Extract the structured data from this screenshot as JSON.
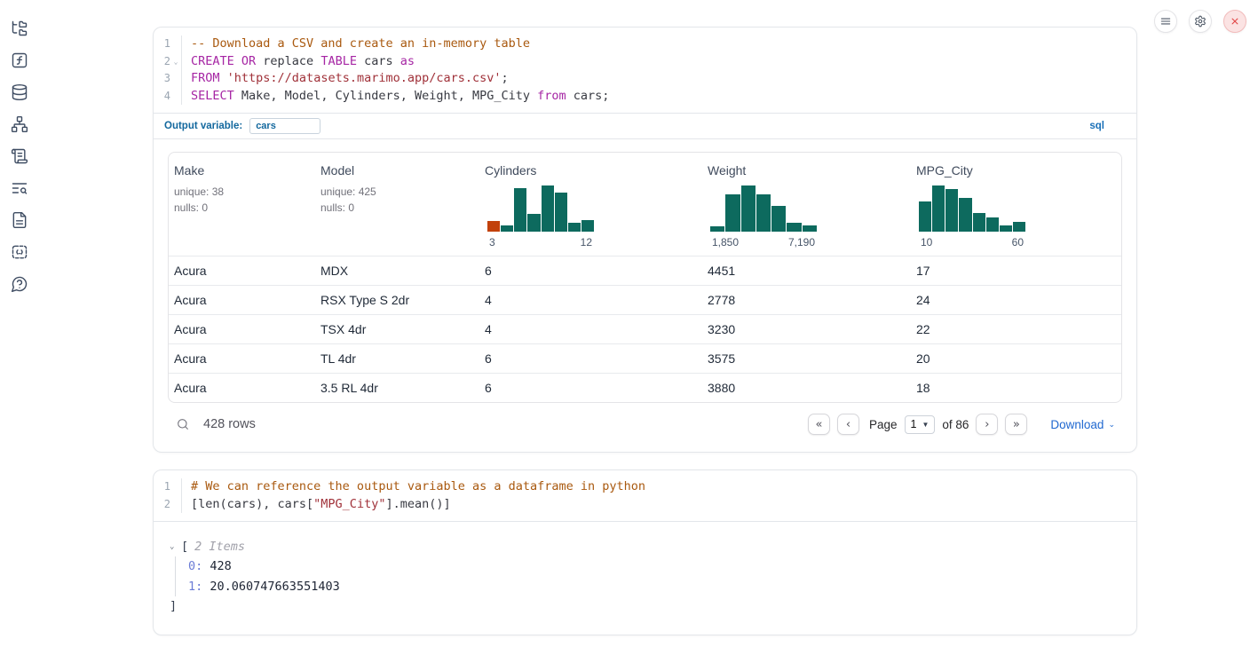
{
  "colors": {
    "hist_green": "#0d6a5e",
    "hist_orange": "#c2410c",
    "link_blue": "#2068d0",
    "output_variable_blue": "#13689e",
    "keyword_purple": "#a626a4",
    "comment_orange": "#a9590f",
    "string_red": "#a03139",
    "shutdown_red": "#e04444"
  },
  "sidebar": {
    "items": [
      {
        "icon": "file-explorer-icon"
      },
      {
        "icon": "function-icon"
      },
      {
        "icon": "datasources-icon"
      },
      {
        "icon": "dependency-graph-icon"
      },
      {
        "icon": "scratchpad-icon"
      },
      {
        "icon": "logs-search-icon"
      },
      {
        "icon": "documentation-icon"
      },
      {
        "icon": "snippets-icon"
      },
      {
        "icon": "help-icon"
      }
    ]
  },
  "topbar": {
    "buttons": [
      {
        "icon": "menu-icon"
      },
      {
        "icon": "settings-icon"
      },
      {
        "icon": "shutdown-icon"
      }
    ]
  },
  "sql_cell": {
    "line_numbers": [
      {
        "n": "1"
      },
      {
        "n": "2",
        "fold": true
      },
      {
        "n": "3"
      },
      {
        "n": "4"
      }
    ],
    "code_lines": [
      [
        {
          "t": "-- Download a CSV and create an in-memory table",
          "c": "comment"
        }
      ],
      [
        {
          "t": "CREATE OR",
          "c": "kw"
        },
        {
          "t": " replace ",
          "c": ""
        },
        {
          "t": "TABLE",
          "c": "kw"
        },
        {
          "t": " cars ",
          "c": ""
        },
        {
          "t": "as",
          "c": "kw"
        }
      ],
      [
        {
          "t": "FROM",
          "c": "kw"
        },
        {
          "t": " ",
          "c": ""
        },
        {
          "t": "'https://datasets.marimo.app/cars.csv'",
          "c": "str"
        },
        {
          "t": ";",
          "c": ""
        }
      ],
      [
        {
          "t": "SELECT",
          "c": "kw"
        },
        {
          "t": " Make, Model, Cylinders, Weight, MPG_City ",
          "c": ""
        },
        {
          "t": "from",
          "c": "kw"
        },
        {
          "t": " cars;",
          "c": ""
        }
      ]
    ],
    "output_variable": {
      "label": "Output variable:",
      "value": "cars"
    },
    "language_badge": "sql"
  },
  "table": {
    "columns": [
      {
        "name": "Make",
        "stats": [
          "unique: 38",
          "nulls: 0"
        ]
      },
      {
        "name": "Model",
        "stats": [
          "unique: 425",
          "nulls: 0"
        ]
      },
      {
        "name": "Cylinders",
        "histogram": {
          "type": "bar",
          "bars": [
            {
              "h": 0.24,
              "c": "orange"
            },
            {
              "h": 0.14,
              "c": "green"
            },
            {
              "h": 0.95,
              "c": "green"
            },
            {
              "h": 0.39,
              "c": "green"
            },
            {
              "h": 1,
              "c": "green"
            },
            {
              "h": 0.85,
              "c": "green"
            },
            {
              "h": 0.2,
              "c": "green"
            },
            {
              "h": 0.25,
              "c": "green"
            }
          ],
          "min": "3",
          "max": "12"
        }
      },
      {
        "name": "Weight",
        "histogram": {
          "type": "bar",
          "bars": [
            {
              "h": 0.12,
              "c": "green"
            },
            {
              "h": 0.8,
              "c": "green"
            },
            {
              "h": 1,
              "c": "green"
            },
            {
              "h": 0.8,
              "c": "green"
            },
            {
              "h": 0.55,
              "c": "green"
            },
            {
              "h": 0.2,
              "c": "green"
            },
            {
              "h": 0.14,
              "c": "green"
            }
          ],
          "min": "1,850",
          "max": "7,190"
        }
      },
      {
        "name": "MPG_City",
        "histogram": {
          "type": "bar",
          "bars": [
            {
              "h": 0.65,
              "c": "green"
            },
            {
              "h": 1,
              "c": "green"
            },
            {
              "h": 0.93,
              "c": "green"
            },
            {
              "h": 0.73,
              "c": "green"
            },
            {
              "h": 0.41,
              "c": "green"
            },
            {
              "h": 0.31,
              "c": "green"
            },
            {
              "h": 0.13,
              "c": "green"
            },
            {
              "h": 0.21,
              "c": "green"
            }
          ],
          "min": "10",
          "max": "60"
        }
      }
    ],
    "rows": [
      [
        "Acura",
        "MDX",
        "6",
        "4451",
        "17"
      ],
      [
        "Acura",
        "RSX Type S 2dr",
        "4",
        "2778",
        "24"
      ],
      [
        "Acura",
        "TSX 4dr",
        "4",
        "3230",
        "22"
      ],
      [
        "Acura",
        "TL 4dr",
        "6",
        "3575",
        "20"
      ],
      [
        "Acura",
        "3.5 RL 4dr",
        "6",
        "3880",
        "18"
      ]
    ],
    "footer": {
      "row_count": "428 rows",
      "page_label": "Page",
      "page_value": "1",
      "of_label": "of 86",
      "download_label": "Download"
    }
  },
  "python_cell": {
    "line_numbers": [
      {
        "n": "1"
      },
      {
        "n": "2"
      }
    ],
    "code_lines": [
      [
        {
          "t": "# We can reference the output variable as a dataframe in python",
          "c": "comment"
        }
      ],
      [
        {
          "t": "[len(cars), cars[",
          "c": ""
        },
        {
          "t": "\"MPG_City\"",
          "c": "str"
        },
        {
          "t": "].mean()]",
          "c": ""
        }
      ]
    ],
    "output": {
      "open": "[",
      "items_label": "2 Items",
      "entries": [
        {
          "key": "0:",
          "value": "428"
        },
        {
          "key": "1:",
          "value": "20.060747663551403"
        }
      ],
      "close": "]"
    }
  }
}
